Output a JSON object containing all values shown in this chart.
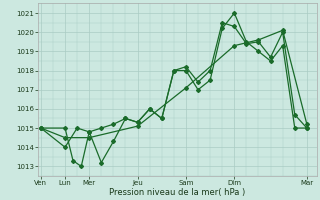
{
  "xlabel": "Pression niveau de la mer( hPa )",
  "bg_color": "#cce8e0",
  "grid_color": "#aaccc4",
  "line_color": "#1a6b2a",
  "ylim": [
    1012.5,
    1021.5
  ],
  "yticks": [
    1013,
    1014,
    1015,
    1016,
    1017,
    1018,
    1019,
    1020,
    1021
  ],
  "day_labels": [
    "Ven",
    "Lun",
    "Mer",
    "Jeu",
    "Sam",
    "Dim",
    "Mar"
  ],
  "day_positions": [
    0,
    1,
    2,
    4,
    6,
    8,
    11
  ],
  "xlim": [
    -0.1,
    11.4
  ],
  "line1_x": [
    0,
    1,
    1.33,
    1.67,
    2,
    2.5,
    3,
    3.5,
    4,
    4.5,
    5,
    5.5,
    6,
    6.5,
    7,
    7.5,
    8,
    8.5,
    9,
    9.5,
    10,
    10.5,
    11
  ],
  "line1_y": [
    1015.0,
    1015.0,
    1013.3,
    1013.0,
    1014.8,
    1013.2,
    1014.3,
    1015.5,
    1015.3,
    1016.0,
    1015.5,
    1018.0,
    1018.2,
    1017.4,
    1018.0,
    1020.5,
    1020.3,
    1019.4,
    1019.5,
    1018.7,
    1020.0,
    1015.7,
    1015.0
  ],
  "line2_x": [
    0,
    1,
    1.5,
    2,
    2.5,
    3,
    3.5,
    4,
    4.5,
    5,
    5.5,
    6,
    6.5,
    7,
    7.5,
    8,
    8.5,
    9,
    9.5,
    10,
    10.5,
    11
  ],
  "line2_y": [
    1015.0,
    1014.0,
    1015.0,
    1014.8,
    1015.0,
    1015.2,
    1015.5,
    1015.3,
    1016.0,
    1015.5,
    1018.0,
    1018.0,
    1017.0,
    1017.5,
    1020.2,
    1021.0,
    1019.5,
    1019.0,
    1018.5,
    1019.3,
    1015.0,
    1015.0
  ],
  "line3_x": [
    0,
    1,
    2,
    4,
    6,
    8,
    9,
    10,
    11
  ],
  "line3_y": [
    1015.0,
    1014.5,
    1014.5,
    1015.1,
    1017.1,
    1019.3,
    1019.6,
    1020.1,
    1015.2
  ]
}
